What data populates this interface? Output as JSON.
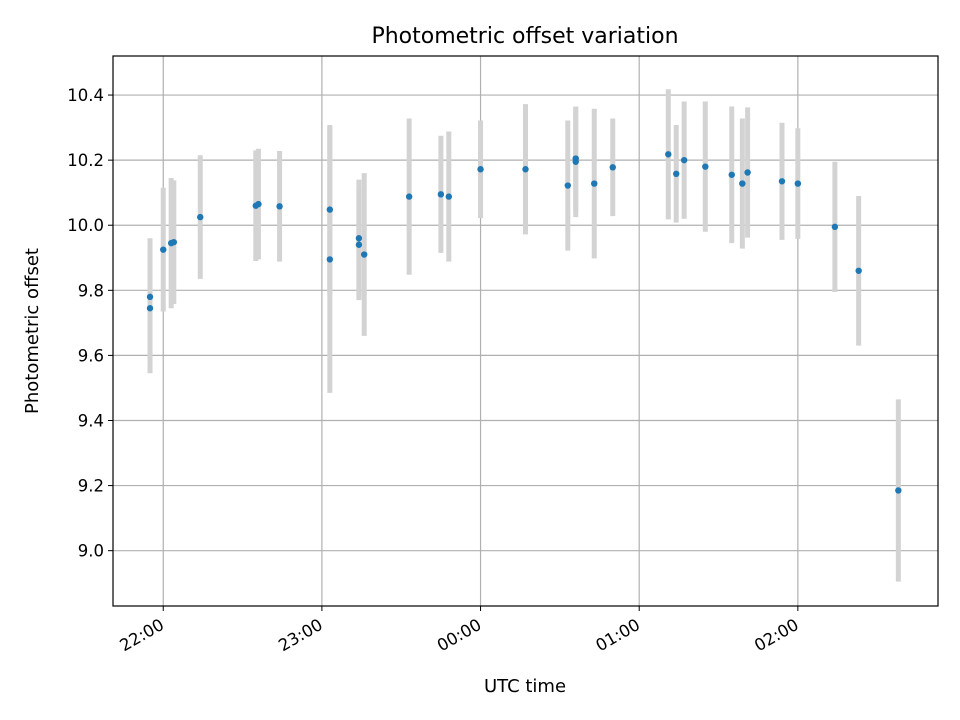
{
  "chart_data": {
    "type": "scatter",
    "title": "Photometric offset variation",
    "xlabel": "UTC time",
    "ylabel": "Photometric offset",
    "x_unit": "UTC time (HH:MM)",
    "xlim": [
      "21:41",
      "02:53"
    ],
    "ylim": [
      8.83,
      10.52
    ],
    "x_ticks": [
      "22:00",
      "23:00",
      "00:00",
      "01:00",
      "02:00"
    ],
    "y_ticks": [
      "9.0",
      "9.2",
      "9.4",
      "9.6",
      "9.8",
      "10.0",
      "10.2",
      "10.4"
    ],
    "grid": true,
    "marker_color": "#1f77b4",
    "errorbar_color": "#d3d3d3",
    "series": [
      {
        "points": [
          {
            "t": "21:55",
            "y": 9.78,
            "err": 0.18
          },
          {
            "t": "21:55",
            "y": 9.745,
            "err": 0.2
          },
          {
            "t": "22:00",
            "y": 9.925,
            "err": 0.19
          },
          {
            "t": "22:03",
            "y": 9.945,
            "err": 0.2
          },
          {
            "t": "22:04",
            "y": 9.948,
            "err": 0.19
          },
          {
            "t": "22:14",
            "y": 10.025,
            "err": 0.19
          },
          {
            "t": "22:35",
            "y": 10.06,
            "err": 0.17
          },
          {
            "t": "22:36",
            "y": 10.065,
            "err": 0.17
          },
          {
            "t": "22:44",
            "y": 10.058,
            "err": 0.17
          },
          {
            "t": "23:03",
            "y": 10.048,
            "err": 0.26
          },
          {
            "t": "23:03",
            "y": 9.895,
            "err": 0.41
          },
          {
            "t": "23:14",
            "y": 9.96,
            "err": 0.18
          },
          {
            "t": "23:14",
            "y": 9.94,
            "err": 0.17
          },
          {
            "t": "23:16",
            "y": 9.91,
            "err": 0.25
          },
          {
            "t": "23:33",
            "y": 10.088,
            "err": 0.24
          },
          {
            "t": "23:45",
            "y": 10.095,
            "err": 0.18
          },
          {
            "t": "23:48",
            "y": 10.088,
            "err": 0.2
          },
          {
            "t": "00:00",
            "y": 10.172,
            "err": 0.15
          },
          {
            "t": "00:17",
            "y": 10.172,
            "err": 0.2
          },
          {
            "t": "00:33",
            "y": 10.122,
            "err": 0.2
          },
          {
            "t": "00:36",
            "y": 10.205,
            "err": 0.16
          },
          {
            "t": "00:36",
            "y": 10.195,
            "err": 0.17
          },
          {
            "t": "00:43",
            "y": 10.128,
            "err": 0.23
          },
          {
            "t": "00:50",
            "y": 10.178,
            "err": 0.15
          },
          {
            "t": "01:11",
            "y": 10.218,
            "err": 0.2
          },
          {
            "t": "01:14",
            "y": 10.158,
            "err": 0.15
          },
          {
            "t": "01:17",
            "y": 10.2,
            "err": 0.18
          },
          {
            "t": "01:25",
            "y": 10.18,
            "err": 0.2
          },
          {
            "t": "01:35",
            "y": 10.155,
            "err": 0.21
          },
          {
            "t": "01:39",
            "y": 10.128,
            "err": 0.2
          },
          {
            "t": "01:41",
            "y": 10.162,
            "err": 0.2
          },
          {
            "t": "01:54",
            "y": 10.135,
            "err": 0.18
          },
          {
            "t": "02:00",
            "y": 10.128,
            "err": 0.17
          },
          {
            "t": "02:14",
            "y": 9.995,
            "err": 0.2
          },
          {
            "t": "02:23",
            "y": 9.86,
            "err": 0.23
          },
          {
            "t": "02:38",
            "y": 9.185,
            "err": 0.28
          }
        ]
      }
    ]
  }
}
